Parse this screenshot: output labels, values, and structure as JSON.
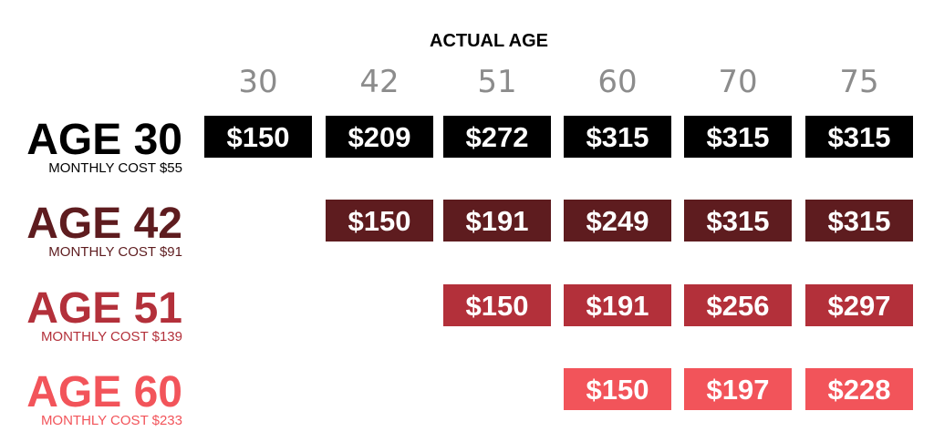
{
  "chart_data": {
    "type": "table",
    "title": "ACTUAL AGE",
    "columns": [
      "30",
      "42",
      "51",
      "60",
      "70",
      "75"
    ],
    "rows": [
      {
        "label": "AGE 30",
        "sublabel": "MONTHLY COST $55",
        "color": "#000000",
        "cells": [
          "$150",
          "$209",
          "$272",
          "$315",
          "$315",
          "$315"
        ]
      },
      {
        "label": "AGE 42",
        "sublabel": "MONTHLY COST $91",
        "color": "#5e1c1f",
        "cells": [
          null,
          "$150",
          "$191",
          "$249",
          "$315",
          "$315"
        ]
      },
      {
        "label": "AGE 51",
        "sublabel": "MONTHLY COST $139",
        "color": "#b3303a",
        "cells": [
          null,
          null,
          "$150",
          "$191",
          "$256",
          "$297"
        ]
      },
      {
        "label": "AGE 60",
        "sublabel": "MONTHLY COST $233",
        "color": "#f2545a",
        "cells": [
          null,
          null,
          null,
          "$150",
          "$197",
          "$228"
        ]
      }
    ]
  }
}
